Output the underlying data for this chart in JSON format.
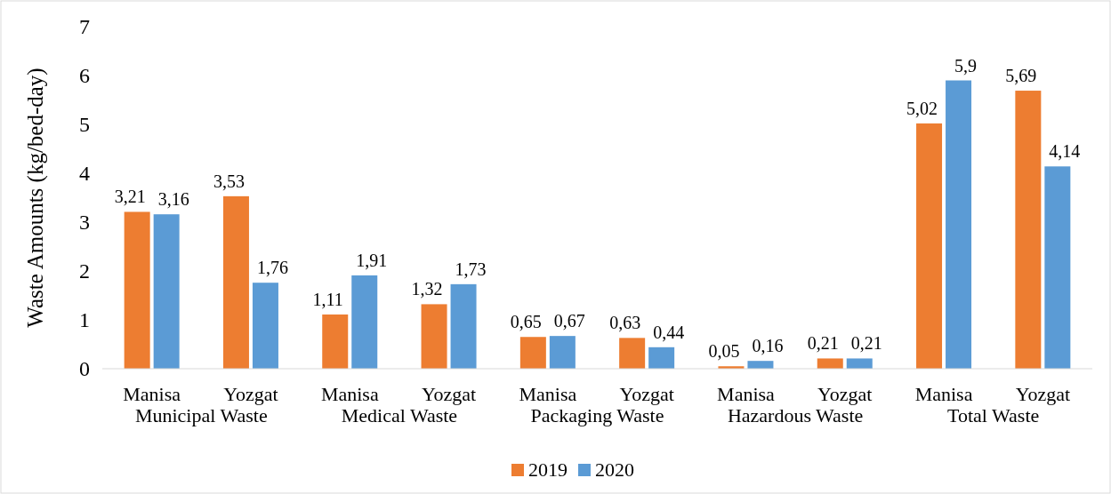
{
  "chart_data": {
    "type": "bar",
    "ylabel": "Waste Amounts (kg/bed-day)",
    "categories": [
      "Manisa",
      "Yozgat",
      "Manisa",
      "Yozgat",
      "Manisa",
      "Yozgat",
      "Manisa",
      "Yozgat",
      "Manisa",
      "Yozgat"
    ],
    "series": [
      {
        "name": "2019",
        "color": "#ed7d31",
        "values": [
          3.21,
          3.53,
          1.11,
          1.32,
          0.65,
          0.63,
          0.05,
          0.21,
          5.02,
          5.69
        ],
        "value_labels": [
          "3,21",
          "3,53",
          "1,11",
          "1,32",
          "0,65",
          "0,63",
          "0,05",
          "0,21",
          "5,02",
          "5,69"
        ]
      },
      {
        "name": "2020",
        "color": "#5b9bd5",
        "values": [
          3.16,
          1.76,
          1.91,
          1.73,
          0.67,
          0.44,
          0.16,
          0.21,
          5.9,
          4.14
        ],
        "value_labels": [
          "3,16",
          "1,76",
          "1,91",
          "1,73",
          "0,67",
          "0,44",
          "0,16",
          "0,21",
          "5,9",
          "4,14"
        ]
      }
    ],
    "annotations": [
      "Municipal Waste",
      "Medical Waste",
      "Packaging Waste",
      "Hazardous Waste",
      "Total Waste"
    ],
    "ylim": [
      0,
      7
    ],
    "yticks": [
      0,
      1,
      2,
      3,
      4,
      5,
      6,
      7
    ],
    "grid": false,
    "legend": "bottom"
  }
}
